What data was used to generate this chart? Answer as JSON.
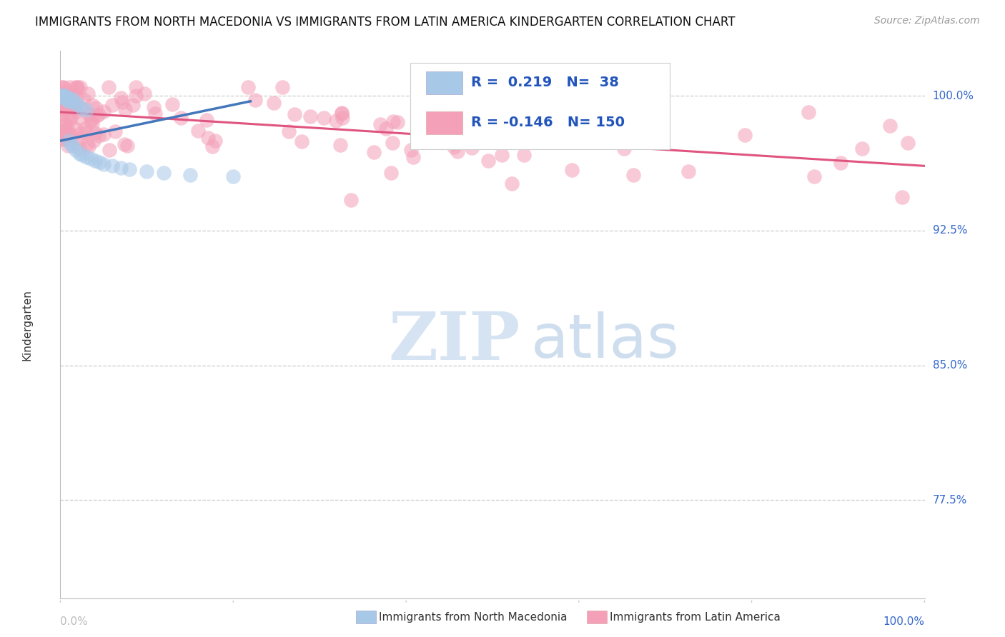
{
  "title": "IMMIGRANTS FROM NORTH MACEDONIA VS IMMIGRANTS FROM LATIN AMERICA KINDERGARTEN CORRELATION CHART",
  "source": "Source: ZipAtlas.com",
  "ylabel": "Kindergarten",
  "ytick_labels": [
    "100.0%",
    "92.5%",
    "85.0%",
    "77.5%"
  ],
  "ytick_values": [
    1.0,
    0.925,
    0.85,
    0.775
  ],
  "xlim": [
    0.0,
    1.0
  ],
  "ylim": [
    0.72,
    1.025
  ],
  "r_blue": 0.219,
  "n_blue": 38,
  "r_pink": -0.146,
  "n_pink": 150,
  "blue_color": "#a8c8e8",
  "pink_color": "#f4a0b8",
  "blue_line_color": "#4477bb",
  "pink_line_color": "#e05580",
  "watermark_zip": "ZIP",
  "watermark_atlas": "atlas",
  "background_color": "#ffffff",
  "grid_color": "#cccccc",
  "legend_label_blue": "Immigrants from North Macedonia",
  "legend_label_pink": "Immigrants from Latin America",
  "blue_trend_x0": 0.0,
  "blue_trend_x1": 0.22,
  "blue_trend_y0": 0.975,
  "blue_trend_y1": 0.997,
  "pink_trend_x0": 0.0,
  "pink_trend_x1": 1.0,
  "pink_trend_y0": 0.991,
  "pink_trend_y1": 0.961
}
